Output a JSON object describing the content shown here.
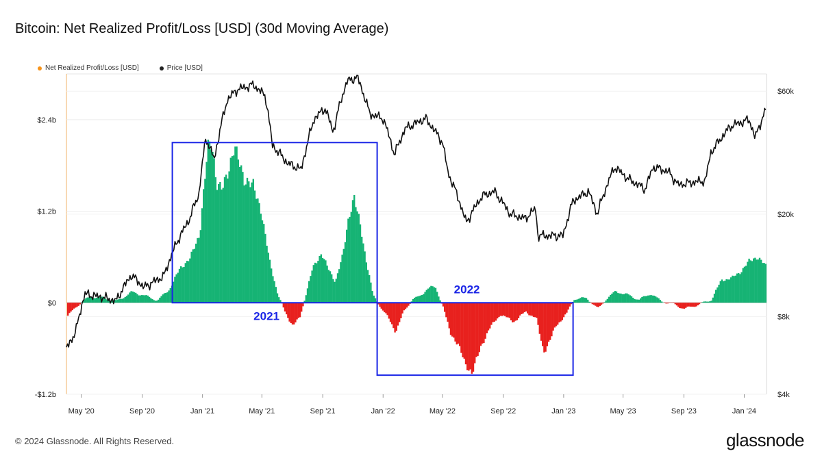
{
  "header": {
    "title": "Bitcoin: Net Realized Profit/Loss [USD] (30d Moving Average)"
  },
  "legend": {
    "items": [
      {
        "label": "Net Realized Profit/Loss [USD]",
        "color": "#f7931a"
      },
      {
        "label": "Price [USD]",
        "color": "#222222"
      }
    ]
  },
  "footer": {
    "copyright": "© 2024 Glassnode. All Rights Reserved.",
    "brand": "glassnode"
  },
  "chart_data": {
    "type": "area",
    "x_ticks": [
      "May '20",
      "Sep '20",
      "Jan '21",
      "May '21",
      "Sep '21",
      "Jan '22",
      "May '22",
      "Sep '22",
      "Jan '23",
      "May '23",
      "Sep '23",
      "Jan '24"
    ],
    "x_range": [
      "2020-04-01",
      "2024-02-15"
    ],
    "y_left": {
      "ticks": [
        "$2.4b",
        "$1.2b",
        "$0",
        "-$1.2b"
      ],
      "tick_values": [
        2.4,
        1.2,
        0,
        -1.2
      ],
      "range": [
        -1.2,
        3.0
      ],
      "unit": "USD billions"
    },
    "y_right": {
      "ticks": [
        "$60k",
        "$20k",
        "$8k",
        "$4k"
      ],
      "tick_values": [
        60000,
        20000,
        8000,
        4000
      ],
      "range": [
        4000,
        70000
      ],
      "scale": "log"
    },
    "positive_color": "#16b374",
    "negative_color": "#e8211e",
    "price_color": "#111111",
    "annotation_color": "#1a25e6",
    "series": [
      {
        "name": "Net Realized Profit/Loss [USD]",
        "unit": "USD billions",
        "points": [
          [
            "2020-04-01",
            -0.18
          ],
          [
            "2020-04-20",
            -0.05
          ],
          [
            "2020-05-01",
            0.02
          ],
          [
            "2020-05-20",
            0.08
          ],
          [
            "2020-06-15",
            0.06
          ],
          [
            "2020-07-10",
            0.02
          ],
          [
            "2020-08-10",
            0.14
          ],
          [
            "2020-09-01",
            0.1
          ],
          [
            "2020-10-01",
            0.03
          ],
          [
            "2020-10-25",
            0.18
          ],
          [
            "2020-11-15",
            0.45
          ],
          [
            "2020-12-05",
            0.58
          ],
          [
            "2020-12-25",
            0.9
          ],
          [
            "2021-01-10",
            2.05
          ],
          [
            "2021-01-18",
            2.1
          ],
          [
            "2021-01-28",
            1.55
          ],
          [
            "2021-02-08",
            1.5
          ],
          [
            "2021-02-22",
            1.75
          ],
          [
            "2021-03-05",
            2.05
          ],
          [
            "2021-03-15",
            1.85
          ],
          [
            "2021-03-25",
            1.6
          ],
          [
            "2021-04-12",
            1.55
          ],
          [
            "2021-04-28",
            1.2
          ],
          [
            "2021-05-15",
            0.55
          ],
          [
            "2021-06-01",
            0.1
          ],
          [
            "2021-06-15",
            -0.12
          ],
          [
            "2021-07-01",
            -0.3
          ],
          [
            "2021-07-15",
            -0.2
          ],
          [
            "2021-07-25",
            0.05
          ],
          [
            "2021-08-10",
            0.45
          ],
          [
            "2021-08-28",
            0.65
          ],
          [
            "2021-09-10",
            0.45
          ],
          [
            "2021-09-25",
            0.28
          ],
          [
            "2021-10-10",
            0.62
          ],
          [
            "2021-10-22",
            1.12
          ],
          [
            "2021-11-02",
            1.38
          ],
          [
            "2021-11-15",
            1.0
          ],
          [
            "2021-11-25",
            0.6
          ],
          [
            "2021-12-10",
            0.1
          ],
          [
            "2021-12-25",
            -0.05
          ],
          [
            "2022-01-10",
            -0.2
          ],
          [
            "2022-01-25",
            -0.38
          ],
          [
            "2022-02-10",
            -0.12
          ],
          [
            "2022-02-28",
            0.05
          ],
          [
            "2022-03-15",
            0.08
          ],
          [
            "2022-04-01",
            0.2
          ],
          [
            "2022-04-15",
            0.2
          ],
          [
            "2022-05-01",
            -0.05
          ],
          [
            "2022-05-15",
            -0.4
          ],
          [
            "2022-06-01",
            -0.55
          ],
          [
            "2022-06-15",
            -0.82
          ],
          [
            "2022-06-28",
            -0.92
          ],
          [
            "2022-07-15",
            -0.6
          ],
          [
            "2022-08-01",
            -0.35
          ],
          [
            "2022-08-25",
            -0.15
          ],
          [
            "2022-09-20",
            -0.25
          ],
          [
            "2022-10-15",
            -0.12
          ],
          [
            "2022-11-05",
            -0.2
          ],
          [
            "2022-11-20",
            -0.65
          ],
          [
            "2022-12-01",
            -0.52
          ],
          [
            "2022-12-15",
            -0.3
          ],
          [
            "2023-01-05",
            -0.15
          ],
          [
            "2023-01-20",
            0.05
          ],
          [
            "2023-02-15",
            0.06
          ],
          [
            "2023-03-10",
            -0.08
          ],
          [
            "2023-03-25",
            0.04
          ],
          [
            "2023-04-15",
            0.15
          ],
          [
            "2023-05-10",
            0.1
          ],
          [
            "2023-06-01",
            0.04
          ],
          [
            "2023-06-25",
            0.12
          ],
          [
            "2023-07-15",
            0.02
          ],
          [
            "2023-08-10",
            -0.02
          ],
          [
            "2023-09-01",
            -0.08
          ],
          [
            "2023-10-01",
            -0.02
          ],
          [
            "2023-10-25",
            0.04
          ],
          [
            "2023-11-15",
            0.3
          ],
          [
            "2023-12-05",
            0.32
          ],
          [
            "2023-12-25",
            0.42
          ],
          [
            "2024-01-10",
            0.55
          ],
          [
            "2024-01-25",
            0.6
          ],
          [
            "2024-02-10",
            0.5
          ],
          [
            "2024-02-15",
            0.45
          ]
        ]
      },
      {
        "name": "Price [USD]",
        "unit": "USD",
        "points": [
          [
            "2020-04-01",
            6000
          ],
          [
            "2020-04-20",
            7000
          ],
          [
            "2020-05-08",
            9800
          ],
          [
            "2020-06-15",
            9500
          ],
          [
            "2020-07-10",
            9200
          ],
          [
            "2020-08-10",
            11600
          ],
          [
            "2020-09-05",
            10400
          ],
          [
            "2020-10-15",
            11500
          ],
          [
            "2020-11-10",
            15500
          ],
          [
            "2020-12-05",
            19000
          ],
          [
            "2020-12-25",
            24000
          ],
          [
            "2021-01-08",
            39500
          ],
          [
            "2021-01-25",
            32500
          ],
          [
            "2021-02-21",
            56000
          ],
          [
            "2021-03-13",
            61000
          ],
          [
            "2021-04-14",
            63500
          ],
          [
            "2021-05-08",
            57500
          ],
          [
            "2021-05-22",
            37000
          ],
          [
            "2021-06-22",
            31500
          ],
          [
            "2021-07-20",
            29800
          ],
          [
            "2021-08-15",
            47000
          ],
          [
            "2021-09-06",
            51500
          ],
          [
            "2021-09-22",
            41500
          ],
          [
            "2021-10-20",
            65500
          ],
          [
            "2021-11-10",
            68000
          ],
          [
            "2021-12-05",
            49000
          ],
          [
            "2022-01-01",
            47000
          ],
          [
            "2022-01-24",
            34000
          ],
          [
            "2022-02-15",
            43000
          ],
          [
            "2022-03-28",
            47000
          ],
          [
            "2022-05-01",
            38000
          ],
          [
            "2022-05-12",
            29000
          ],
          [
            "2022-06-18",
            18500
          ],
          [
            "2022-07-20",
            23500
          ],
          [
            "2022-08-14",
            24500
          ],
          [
            "2022-09-15",
            20000
          ],
          [
            "2022-10-15",
            19200
          ],
          [
            "2022-11-05",
            21000
          ],
          [
            "2022-11-10",
            16500
          ],
          [
            "2022-12-31",
            16500
          ],
          [
            "2023-01-20",
            22500
          ],
          [
            "2023-02-20",
            24500
          ],
          [
            "2023-03-10",
            20000
          ],
          [
            "2023-04-14",
            30500
          ],
          [
            "2023-05-10",
            27500
          ],
          [
            "2023-06-15",
            25000
          ],
          [
            "2023-07-01",
            30500
          ],
          [
            "2023-08-01",
            29200
          ],
          [
            "2023-08-20",
            26000
          ],
          [
            "2023-09-15",
            26500
          ],
          [
            "2023-10-15",
            27000
          ],
          [
            "2023-10-25",
            34500
          ],
          [
            "2023-12-05",
            44000
          ],
          [
            "2024-01-11",
            46500
          ],
          [
            "2024-01-23",
            39500
          ],
          [
            "2024-02-15",
            51500
          ]
        ]
      }
    ],
    "annotations": [
      {
        "label": "2021",
        "x_range": [
          "2020-11-01",
          "2021-12-20"
        ],
        "y_range": [
          0,
          2.1
        ],
        "label_position": "below"
      },
      {
        "label": "2022",
        "x_range": [
          "2021-12-20",
          "2023-01-20"
        ],
        "y_range": [
          -0.95,
          0
        ],
        "label_position": "above"
      }
    ]
  }
}
